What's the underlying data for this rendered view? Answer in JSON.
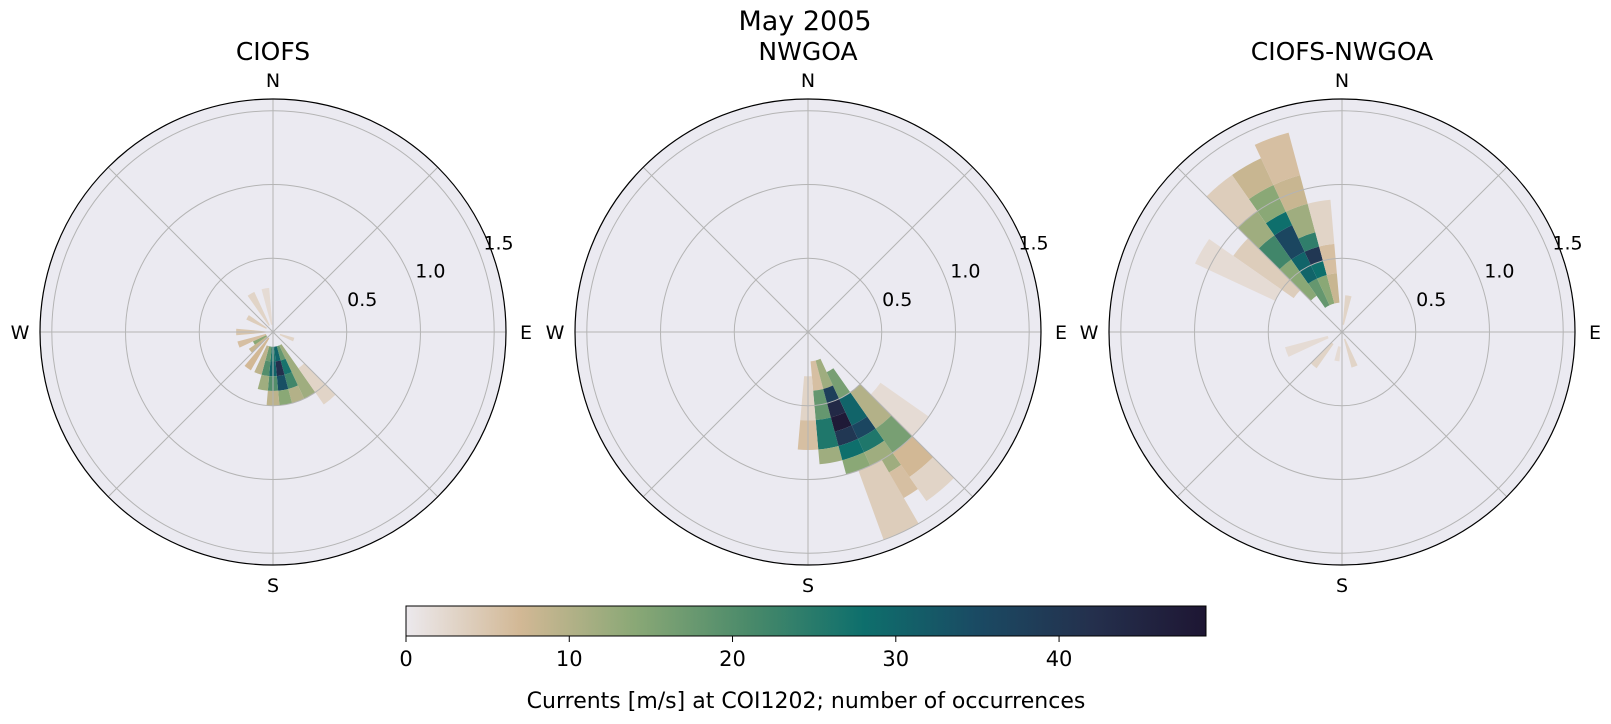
{
  "suptitle": "May 2005",
  "colorbar": {
    "label": "Currents [m/s] at COI1202; number of occurrences",
    "vmin": 0,
    "vmax": 49,
    "ticks": [
      0,
      10,
      20,
      30,
      40
    ],
    "colormap_stops": [
      "#ece9ed",
      "#d2b895",
      "#8aa876",
      "#4a8a6a",
      "#0e6f6c",
      "#1a4a63",
      "#24304d",
      "#1e1633"
    ]
  },
  "chart_data": [
    {
      "type": "heatmap",
      "subtype": "polar-rose",
      "title": "CIOFS",
      "direction_labels": [
        "N",
        "E",
        "S",
        "W"
      ],
      "radial_ticks": [
        0.5,
        1.0,
        1.5
      ],
      "r_max": 1.58,
      "cells": [
        {
          "dir": 150,
          "r0": 0.1,
          "r1": 0.5,
          "count": 12
        },
        {
          "dir": 160,
          "r0": 0.1,
          "r1": 0.2,
          "count": 18
        },
        {
          "dir": 160,
          "r0": 0.2,
          "r1": 0.3,
          "count": 27
        },
        {
          "dir": 160,
          "r0": 0.3,
          "r1": 0.4,
          "count": 22
        },
        {
          "dir": 160,
          "r0": 0.4,
          "r1": 0.5,
          "count": 10
        },
        {
          "dir": 170,
          "r0": 0.1,
          "r1": 0.2,
          "count": 30
        },
        {
          "dir": 170,
          "r0": 0.2,
          "r1": 0.3,
          "count": 42
        },
        {
          "dir": 170,
          "r0": 0.3,
          "r1": 0.4,
          "count": 34
        },
        {
          "dir": 170,
          "r0": 0.4,
          "r1": 0.5,
          "count": 14
        },
        {
          "dir": 180,
          "r0": 0.1,
          "r1": 0.2,
          "count": 26
        },
        {
          "dir": 180,
          "r0": 0.2,
          "r1": 0.3,
          "count": 30
        },
        {
          "dir": 180,
          "r0": 0.3,
          "r1": 0.4,
          "count": 20
        },
        {
          "dir": 180,
          "r0": 0.4,
          "r1": 0.5,
          "count": 9
        },
        {
          "dir": 190,
          "r0": 0.1,
          "r1": 0.2,
          "count": 17
        },
        {
          "dir": 190,
          "r0": 0.2,
          "r1": 0.3,
          "count": 20
        },
        {
          "dir": 190,
          "r0": 0.3,
          "r1": 0.4,
          "count": 12
        },
        {
          "dir": 200,
          "r0": 0.1,
          "r1": 0.3,
          "count": 9
        },
        {
          "dir": 140,
          "r0": 0.3,
          "r1": 0.6,
          "count": 3
        },
        {
          "dir": 215,
          "r0": 0.05,
          "r1": 0.3,
          "count": 7
        },
        {
          "dir": 230,
          "r0": 0.05,
          "r1": 0.2,
          "count": 8
        },
        {
          "dir": 240,
          "r0": 0.05,
          "r1": 0.15,
          "count": 14
        },
        {
          "dir": 250,
          "r0": 0.05,
          "r1": 0.25,
          "count": 6
        },
        {
          "dir": 270,
          "r0": 0.05,
          "r1": 0.25,
          "count": 5
        },
        {
          "dir": 300,
          "r0": 0.05,
          "r1": 0.2,
          "count": 4
        },
        {
          "dir": 330,
          "r0": 0.05,
          "r1": 0.3,
          "count": 3
        },
        {
          "dir": 350,
          "r0": 0.05,
          "r1": 0.3,
          "count": 2
        },
        {
          "dir": 110,
          "r0": 0.05,
          "r1": 0.15,
          "count": 3
        }
      ]
    },
    {
      "type": "heatmap",
      "subtype": "polar-rose",
      "title": "NWGOA",
      "direction_labels": [
        "N",
        "E",
        "S",
        "W"
      ],
      "radial_ticks": [
        0.5,
        1.0,
        1.5
      ],
      "r_max": 1.58,
      "cells": [
        {
          "dir": 170,
          "r0": 0.2,
          "r1": 0.4,
          "count": 6
        },
        {
          "dir": 170,
          "r0": 0.4,
          "r1": 0.6,
          "count": 18
        },
        {
          "dir": 170,
          "r0": 0.6,
          "r1": 0.8,
          "count": 26
        },
        {
          "dir": 170,
          "r0": 0.8,
          "r1": 0.9,
          "count": 12
        },
        {
          "dir": 160,
          "r0": 0.2,
          "r1": 0.4,
          "count": 12
        },
        {
          "dir": 160,
          "r0": 0.4,
          "r1": 0.5,
          "count": 38
        },
        {
          "dir": 160,
          "r0": 0.5,
          "r1": 0.6,
          "count": 44
        },
        {
          "dir": 160,
          "r0": 0.6,
          "r1": 0.7,
          "count": 48
        },
        {
          "dir": 160,
          "r0": 0.7,
          "r1": 0.8,
          "count": 40
        },
        {
          "dir": 160,
          "r0": 0.8,
          "r1": 0.9,
          "count": 28
        },
        {
          "dir": 160,
          "r0": 0.9,
          "r1": 1.0,
          "count": 14
        },
        {
          "dir": 150,
          "r0": 0.3,
          "r1": 0.5,
          "count": 16
        },
        {
          "dir": 150,
          "r0": 0.5,
          "r1": 0.7,
          "count": 30
        },
        {
          "dir": 150,
          "r0": 0.7,
          "r1": 0.8,
          "count": 36
        },
        {
          "dir": 150,
          "r0": 0.8,
          "r1": 0.9,
          "count": 26
        },
        {
          "dir": 150,
          "r0": 0.9,
          "r1": 1.1,
          "count": 12
        },
        {
          "dir": 150,
          "r0": 1.1,
          "r1": 1.3,
          "count": 6
        },
        {
          "dir": 140,
          "r0": 0.5,
          "r1": 0.8,
          "count": 10
        },
        {
          "dir": 140,
          "r0": 0.8,
          "r1": 1.0,
          "count": 16
        },
        {
          "dir": 140,
          "r0": 1.0,
          "r1": 1.2,
          "count": 7
        },
        {
          "dir": 140,
          "r0": 1.2,
          "r1": 1.4,
          "count": 3
        },
        {
          "dir": 180,
          "r0": 0.3,
          "r1": 0.6,
          "count": 3
        },
        {
          "dir": 180,
          "r0": 0.6,
          "r1": 0.8,
          "count": 6
        },
        {
          "dir": 130,
          "r0": 0.6,
          "r1": 1.0,
          "count": 2
        },
        {
          "dir": 155,
          "r0": 1.0,
          "r1": 1.5,
          "count": 4
        }
      ]
    },
    {
      "type": "heatmap",
      "subtype": "polar-rose",
      "title": "CIOFS-NWGOA",
      "direction_labels": [
        "N",
        "E",
        "S",
        "W"
      ],
      "radial_ticks": [
        0.5,
        1.0,
        1.5
      ],
      "r_max": 1.58,
      "cells": [
        {
          "dir": 330,
          "r0": 0.2,
          "r1": 0.4,
          "count": 18
        },
        {
          "dir": 330,
          "r0": 0.4,
          "r1": 0.6,
          "count": 30
        },
        {
          "dir": 330,
          "r0": 0.6,
          "r1": 0.8,
          "count": 36
        },
        {
          "dir": 330,
          "r0": 0.8,
          "r1": 0.9,
          "count": 28
        },
        {
          "dir": 330,
          "r0": 0.9,
          "r1": 1.1,
          "count": 14
        },
        {
          "dir": 330,
          "r0": 1.1,
          "r1": 1.3,
          "count": 8
        },
        {
          "dir": 340,
          "r0": 0.2,
          "r1": 0.4,
          "count": 14
        },
        {
          "dir": 340,
          "r0": 0.4,
          "r1": 0.5,
          "count": 28
        },
        {
          "dir": 340,
          "r0": 0.5,
          "r1": 0.6,
          "count": 40
        },
        {
          "dir": 340,
          "r0": 0.6,
          "r1": 0.7,
          "count": 24
        },
        {
          "dir": 340,
          "r0": 0.7,
          "r1": 0.9,
          "count": 12
        },
        {
          "dir": 340,
          "r0": 0.9,
          "r1": 1.1,
          "count": 8
        },
        {
          "dir": 340,
          "r0": 1.1,
          "r1": 1.4,
          "count": 6
        },
        {
          "dir": 320,
          "r0": 0.3,
          "r1": 0.6,
          "count": 14
        },
        {
          "dir": 320,
          "r0": 0.6,
          "r1": 0.8,
          "count": 22
        },
        {
          "dir": 320,
          "r0": 0.8,
          "r1": 1.0,
          "count": 12
        },
        {
          "dir": 320,
          "r0": 1.0,
          "r1": 1.3,
          "count": 4
        },
        {
          "dir": 350,
          "r0": 0.2,
          "r1": 0.4,
          "count": 8
        },
        {
          "dir": 350,
          "r0": 0.4,
          "r1": 0.6,
          "count": 6
        },
        {
          "dir": 350,
          "r0": 0.6,
          "r1": 0.9,
          "count": 3
        },
        {
          "dir": 310,
          "r0": 0.4,
          "r1": 0.9,
          "count": 4
        },
        {
          "dir": 300,
          "r0": 0.5,
          "r1": 1.1,
          "count": 2
        },
        {
          "dir": 250,
          "r0": 0.1,
          "r1": 0.4,
          "count": 2
        },
        {
          "dir": 220,
          "r0": 0.1,
          "r1": 0.3,
          "count": 3
        },
        {
          "dir": 160,
          "r0": 0.05,
          "r1": 0.25,
          "count": 3
        },
        {
          "dir": 190,
          "r0": 0.1,
          "r1": 0.2,
          "count": 2
        },
        {
          "dir": 10,
          "r0": 0.05,
          "r1": 0.25,
          "count": 3
        }
      ]
    }
  ]
}
